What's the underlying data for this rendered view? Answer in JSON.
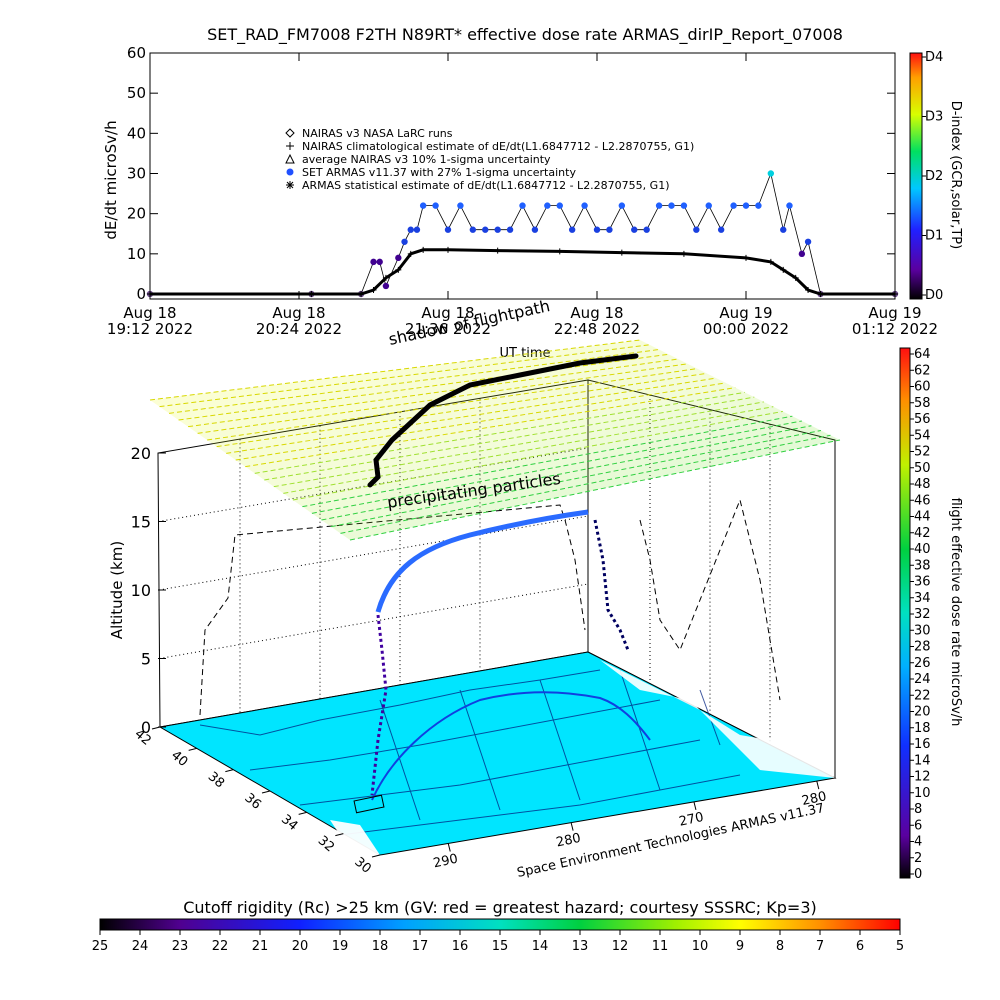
{
  "title": "SET_RAD_FM7008  F2TH N89RT* effective dose rate ARMAS_dirIP_Report_07008",
  "chart_data": [
    {
      "type": "scatter",
      "ylabel": "dE/dt microSv/h",
      "ylim": [
        0,
        60
      ],
      "yticks": [
        "0",
        "10",
        "20",
        "30",
        "40",
        "50",
        "60"
      ],
      "xlabel": "UT time",
      "xlim_hours": [
        19.2,
        25.2
      ],
      "xticks": [
        {
          "line1": "Aug 18",
          "line2": "19:12 2022",
          "t": 19.2
        },
        {
          "line1": "Aug 18",
          "line2": "20:24 2022",
          "t": 20.4
        },
        {
          "line1": "Aug 18",
          "line2": "21:36 2022",
          "t": 21.6
        },
        {
          "line1": "Aug 18",
          "line2": "22:48 2022",
          "t": 22.8
        },
        {
          "line1": "Aug 19",
          "line2": "00:00 2022",
          "t": 24.0
        },
        {
          "line1": "Aug 19",
          "line2": "01:12 2022",
          "t": 25.2
        }
      ],
      "legend": {
        "placement": "top-left",
        "entries": [
          {
            "symbol": "diamond",
            "label": "NAIRAS v3 NASA LaRC runs"
          },
          {
            "symbol": "plus",
            "label": "NAIRAS climatological estimate of dE/dt(L1.6847712 - L2.2870755, G1)"
          },
          {
            "symbol": "triangle",
            "label": "average NAIRAS v3 10% 1-sigma uncertainty"
          },
          {
            "symbol": "circle",
            "label": "SET ARMAS v11.37 with 27% 1-sigma uncertainty"
          },
          {
            "symbol": "asterisk",
            "label": "ARMAS statistical estimate of dE/dt(L1.6847712 - L2.2870755, G1)"
          }
        ]
      },
      "series": [
        {
          "name": "SET ARMAS v11.37",
          "x": [
            19.2,
            20.5,
            20.9,
            21.0,
            21.05,
            21.1,
            21.2,
            21.25,
            21.3,
            21.35,
            21.4,
            21.5,
            21.6,
            21.7,
            21.8,
            21.9,
            22.0,
            22.1,
            22.2,
            22.3,
            22.4,
            22.5,
            22.6,
            22.7,
            22.8,
            22.9,
            23.0,
            23.1,
            23.2,
            23.3,
            23.4,
            23.5,
            23.6,
            23.7,
            23.8,
            23.9,
            24.0,
            24.1,
            24.2,
            24.3,
            24.35,
            24.45,
            24.5,
            24.6,
            25.2
          ],
          "y": [
            0,
            0,
            0,
            8,
            8,
            2,
            9,
            13,
            16,
            16,
            22,
            22,
            16,
            22,
            16,
            16,
            16,
            16,
            22,
            16,
            22,
            22,
            16,
            22,
            16,
            16,
            22,
            16,
            16,
            22,
            22,
            22,
            16,
            22,
            16,
            22,
            22,
            22,
            30,
            16,
            22,
            10,
            13,
            0,
            0
          ]
        },
        {
          "name": "NAIRAS climatological estimate",
          "x": [
            19.2,
            20.5,
            20.9,
            21.0,
            21.1,
            21.2,
            21.3,
            21.4,
            21.6,
            22.0,
            22.5,
            23.0,
            23.5,
            24.0,
            24.2,
            24.3,
            24.4,
            24.5,
            24.6,
            25.2
          ],
          "y": [
            0,
            0,
            0,
            1,
            4,
            6,
            10,
            11,
            11,
            10.8,
            10.6,
            10.3,
            10,
            9,
            8,
            6,
            4,
            1,
            0,
            0
          ]
        }
      ],
      "colorbar": {
        "label": "D-index (GCR,solar,TP)",
        "ticks": [
          "D0",
          "D1",
          "D2",
          "D3",
          "D4"
        ]
      }
    },
    {
      "type": "scatter",
      "zlabel": "Altitude (km)",
      "zticks": [
        "0",
        "5",
        "10",
        "15",
        "20"
      ],
      "lat_ticks": [
        "42",
        "40",
        "38",
        "36",
        "34",
        "32",
        "30"
      ],
      "lon_ticks": [
        "290",
        "280",
        "270",
        "280"
      ],
      "annotations": [
        "shadow of flightpath",
        "precipitating particles"
      ],
      "credit": "Space Environment Technologies ARMAS v11.37",
      "colorbar": {
        "label": "flight effective dose rate microSv/h",
        "ticks": [
          "0",
          "2",
          "4",
          "6",
          "8",
          "10",
          "12",
          "14",
          "16",
          "18",
          "20",
          "22",
          "24",
          "26",
          "28",
          "30",
          "32",
          "34",
          "36",
          "38",
          "40",
          "42",
          "44",
          "46",
          "48",
          "50",
          "52",
          "54",
          "56",
          "58",
          "60",
          "62",
          "64"
        ]
      },
      "rigidity_bar": {
        "label": "Cutoff rigidity (Rc) >25 km (GV: red = greatest hazard; courtesy SSSRC; Kp=3)",
        "ticks": [
          "25",
          "24",
          "23",
          "22",
          "21",
          "20",
          "19",
          "18",
          "17",
          "16",
          "15",
          "14",
          "13",
          "12",
          "11",
          "10",
          "9",
          "8",
          "7",
          "6",
          "5"
        ]
      }
    }
  ],
  "colors": {
    "map_fill": "#00e5ff",
    "flight_track": "#000000",
    "plane_low": "#ffff00",
    "plane_high": "#00d000"
  }
}
